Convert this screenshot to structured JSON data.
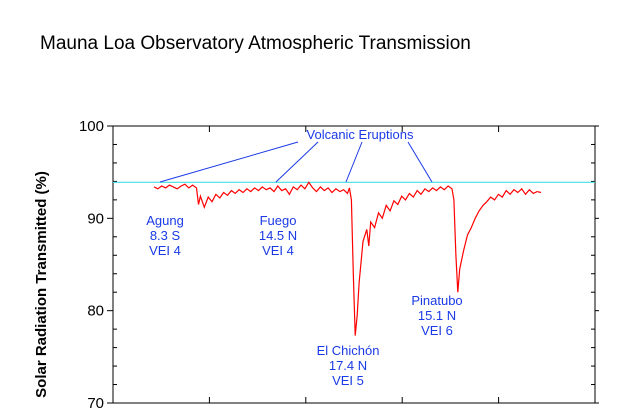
{
  "chart_data": {
    "type": "line",
    "title": "Mauna Loa Observatory Atmospheric Transmission",
    "ylabel": "Solar Radiation Transmitted (%)",
    "xlabel": "",
    "ylim": [
      70,
      100
    ],
    "yticks": [
      70,
      80,
      90,
      100
    ],
    "grid": false,
    "legend": "none",
    "reference_line": {
      "y": 93.9,
      "color": "#40e0e0"
    },
    "series": [
      {
        "color": "#ff0000",
        "points": [
          [
            0.0,
            93.4
          ],
          [
            0.01,
            93.2
          ],
          [
            0.02,
            93.5
          ],
          [
            0.03,
            93.3
          ],
          [
            0.04,
            93.6
          ],
          [
            0.05,
            93.4
          ],
          [
            0.06,
            93.2
          ],
          [
            0.07,
            93.5
          ],
          [
            0.08,
            93.7
          ],
          [
            0.09,
            93.3
          ],
          [
            0.1,
            93.6
          ],
          [
            0.11,
            93.3
          ],
          [
            0.115,
            91.5
          ],
          [
            0.12,
            92.4
          ],
          [
            0.13,
            91.2
          ],
          [
            0.14,
            92.3
          ],
          [
            0.15,
            91.8
          ],
          [
            0.16,
            92.6
          ],
          [
            0.17,
            92.2
          ],
          [
            0.18,
            92.8
          ],
          [
            0.19,
            92.5
          ],
          [
            0.2,
            93.0
          ],
          [
            0.21,
            92.7
          ],
          [
            0.22,
            93.1
          ],
          [
            0.23,
            92.8
          ],
          [
            0.24,
            93.2
          ],
          [
            0.25,
            92.9
          ],
          [
            0.26,
            93.3
          ],
          [
            0.27,
            93.0
          ],
          [
            0.28,
            93.4
          ],
          [
            0.29,
            93.1
          ],
          [
            0.3,
            93.3
          ],
          [
            0.31,
            92.9
          ],
          [
            0.32,
            93.5
          ],
          [
            0.33,
            93.0
          ],
          [
            0.34,
            93.2
          ],
          [
            0.35,
            92.6
          ],
          [
            0.36,
            93.4
          ],
          [
            0.37,
            93.1
          ],
          [
            0.38,
            93.6
          ],
          [
            0.39,
            93.2
          ],
          [
            0.4,
            93.9
          ],
          [
            0.41,
            93.3
          ],
          [
            0.42,
            92.9
          ],
          [
            0.43,
            93.4
          ],
          [
            0.44,
            93.0
          ],
          [
            0.45,
            93.3
          ],
          [
            0.46,
            92.8
          ],
          [
            0.47,
            93.2
          ],
          [
            0.48,
            92.9
          ],
          [
            0.49,
            93.1
          ],
          [
            0.5,
            92.7
          ],
          [
            0.505,
            93.3
          ],
          [
            0.51,
            92.0
          ],
          [
            0.515,
            84.0
          ],
          [
            0.52,
            77.3
          ],
          [
            0.525,
            79.5
          ],
          [
            0.53,
            83.0
          ],
          [
            0.54,
            87.5
          ],
          [
            0.55,
            88.8
          ],
          [
            0.555,
            87.0
          ],
          [
            0.56,
            89.6
          ],
          [
            0.57,
            89.0
          ],
          [
            0.58,
            90.6
          ],
          [
            0.59,
            90.0
          ],
          [
            0.6,
            91.4
          ],
          [
            0.61,
            90.8
          ],
          [
            0.62,
            91.9
          ],
          [
            0.63,
            91.5
          ],
          [
            0.64,
            92.4
          ],
          [
            0.65,
            92.0
          ],
          [
            0.66,
            92.7
          ],
          [
            0.67,
            92.3
          ],
          [
            0.68,
            93.0
          ],
          [
            0.69,
            92.6
          ],
          [
            0.7,
            93.2
          ],
          [
            0.71,
            92.9
          ],
          [
            0.72,
            93.3
          ],
          [
            0.73,
            93.0
          ],
          [
            0.74,
            93.4
          ],
          [
            0.75,
            93.1
          ],
          [
            0.76,
            93.5
          ],
          [
            0.77,
            93.2
          ],
          [
            0.775,
            92.0
          ],
          [
            0.78,
            86.0
          ],
          [
            0.785,
            82.0
          ],
          [
            0.79,
            84.5
          ],
          [
            0.8,
            86.5
          ],
          [
            0.81,
            88.2
          ],
          [
            0.82,
            89.0
          ],
          [
            0.83,
            90.0
          ],
          [
            0.84,
            90.8
          ],
          [
            0.85,
            91.4
          ],
          [
            0.86,
            91.8
          ],
          [
            0.87,
            92.3
          ],
          [
            0.88,
            92.0
          ],
          [
            0.89,
            92.6
          ],
          [
            0.9,
            92.3
          ],
          [
            0.91,
            93.0
          ],
          [
            0.92,
            92.6
          ],
          [
            0.93,
            93.1
          ],
          [
            0.94,
            92.8
          ],
          [
            0.95,
            93.2
          ],
          [
            0.96,
            92.6
          ],
          [
            0.97,
            93.1
          ],
          [
            0.98,
            92.7
          ],
          [
            0.99,
            92.9
          ],
          [
            1.0,
            92.8
          ]
        ]
      }
    ],
    "annotations": {
      "header": "Volcanic Eruptions",
      "eruptions": [
        {
          "name": "Agung",
          "lat": "8.3 S",
          "vei": "VEI  4"
        },
        {
          "name": "Fuego",
          "lat": "14.5 N",
          "vei": "VEI  4"
        },
        {
          "name": "El Chichón",
          "lat": "17.4 N",
          "vei": "VEI  5"
        },
        {
          "name": "Pinatubo",
          "lat": "15.1 N",
          "vei": "VEI  6"
        }
      ]
    }
  }
}
